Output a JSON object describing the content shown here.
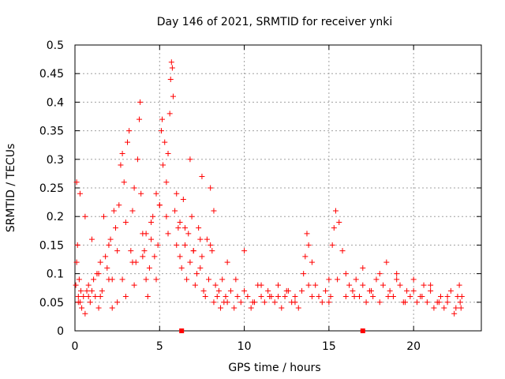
{
  "chart_data": {
    "type": "scatter",
    "title": "Day 146 of 2021, SRMTID for receiver ynki",
    "xlabel": "GPS time / hours",
    "ylabel": "SRMTID / TECUs",
    "xlim": [
      0,
      24
    ],
    "ylim": [
      0,
      0.5
    ],
    "x_ticks": [
      0,
      5,
      10,
      15,
      20
    ],
    "x_tick_labels": [
      "0",
      "5",
      "10",
      "15",
      "20"
    ],
    "y_ticks": [
      0,
      0.05,
      0.1,
      0.15,
      0.2,
      0.25,
      0.3,
      0.35,
      0.4,
      0.45,
      0.5
    ],
    "y_tick_labels": [
      "0",
      "0.05",
      "0.1",
      "0.15",
      "0.2",
      "0.25",
      "0.3",
      "0.35",
      "0.4",
      "0.45",
      "0.5"
    ],
    "grid": true,
    "marker": "plus",
    "color": "#ff0000",
    "baseline_markers_x": [
      6.3,
      17.0
    ],
    "series": [
      {
        "name": "SRMTID",
        "x": [
          0.05,
          0.1,
          0.15,
          0.2,
          0.25,
          0.3,
          0.35,
          0.4,
          0.5,
          0.6,
          0.7,
          0.8,
          0.9,
          1.0,
          1.1,
          1.2,
          1.3,
          1.4,
          1.5,
          1.6,
          1.7,
          1.8,
          1.9,
          2.0,
          2.1,
          2.2,
          2.3,
          2.4,
          2.5,
          2.6,
          2.7,
          2.8,
          2.9,
          3.0,
          3.1,
          3.2,
          3.3,
          3.4,
          3.5,
          3.6,
          3.7,
          3.8,
          3.85,
          3.9,
          4.0,
          4.1,
          4.2,
          4.3,
          4.4,
          4.5,
          4.6,
          4.7,
          4.8,
          4.9,
          5.0,
          5.1,
          5.15,
          5.2,
          5.3,
          5.4,
          5.5,
          5.6,
          5.65,
          5.7,
          5.75,
          5.8,
          5.9,
          6.0,
          6.1,
          6.2,
          6.3,
          6.4,
          6.5,
          6.6,
          6.7,
          6.8,
          6.9,
          7.0,
          7.1,
          7.2,
          7.3,
          7.4,
          7.5,
          7.6,
          7.7,
          7.8,
          7.9,
          8.0,
          8.1,
          8.2,
          8.3,
          8.4,
          8.5,
          8.6,
          8.7,
          8.8,
          8.9,
          9.0,
          9.2,
          9.4,
          9.6,
          9.8,
          10.0,
          10.2,
          10.4,
          10.6,
          10.8,
          11.0,
          11.2,
          11.4,
          11.6,
          11.8,
          12.0,
          12.2,
          12.4,
          12.6,
          12.8,
          13.0,
          13.2,
          13.4,
          13.5,
          13.6,
          13.7,
          13.8,
          14.0,
          14.2,
          14.4,
          14.6,
          14.8,
          15.0,
          15.1,
          15.2,
          15.3,
          15.4,
          15.6,
          15.8,
          16.0,
          16.2,
          16.4,
          16.6,
          16.8,
          17.0,
          17.2,
          17.4,
          17.6,
          17.8,
          18.0,
          18.2,
          18.4,
          18.6,
          18.8,
          19.0,
          19.2,
          19.4,
          19.6,
          19.8,
          20.0,
          20.2,
          20.4,
          20.6,
          20.8,
          21.0,
          21.2,
          21.4,
          21.6,
          21.8,
          22.0,
          22.2,
          22.4,
          22.6,
          22.7,
          22.75,
          22.8,
          22.85,
          0.1,
          0.3,
          0.6,
          1.0,
          1.5,
          2.0,
          2.5,
          3.0,
          3.5,
          4.0,
          4.5,
          5.0,
          5.5,
          6.0,
          6.5,
          7.0,
          7.5,
          8.0,
          9.0,
          10.0,
          11.0,
          12.0,
          13.0,
          14.0,
          15.0,
          16.0,
          17.0,
          18.0,
          19.0,
          20.0,
          21.0,
          22.0,
          0.2,
          0.8,
          1.4,
          2.2,
          2.8,
          3.4,
          4.2,
          4.8,
          5.4,
          6.2,
          6.8,
          7.4,
          8.2,
          9.5,
          10.5,
          11.5,
          12.5,
          13.8,
          15.5,
          16.5,
          17.5,
          18.5,
          19.5,
          20.5,
          21.5,
          22.5
        ],
        "y": [
          0.08,
          0.12,
          0.15,
          0.06,
          0.09,
          0.05,
          0.07,
          0.04,
          0.06,
          0.03,
          0.07,
          0.08,
          0.05,
          0.07,
          0.09,
          0.06,
          0.1,
          0.04,
          0.12,
          0.07,
          0.2,
          0.13,
          0.11,
          0.15,
          0.16,
          0.09,
          0.21,
          0.18,
          0.14,
          0.22,
          0.29,
          0.31,
          0.26,
          0.19,
          0.33,
          0.35,
          0.14,
          0.21,
          0.25,
          0.12,
          0.3,
          0.37,
          0.4,
          0.24,
          0.17,
          0.14,
          0.09,
          0.06,
          0.11,
          0.16,
          0.2,
          0.13,
          0.09,
          0.15,
          0.22,
          0.35,
          0.37,
          0.29,
          0.33,
          0.26,
          0.31,
          0.38,
          0.44,
          0.47,
          0.46,
          0.41,
          0.21,
          0.24,
          0.18,
          0.19,
          0.11,
          0.23,
          0.15,
          0.09,
          0.17,
          0.12,
          0.2,
          0.14,
          0.08,
          0.1,
          0.18,
          0.11,
          0.13,
          0.07,
          0.06,
          0.16,
          0.09,
          0.25,
          0.14,
          0.05,
          0.08,
          0.06,
          0.07,
          0.04,
          0.09,
          0.05,
          0.06,
          0.05,
          0.07,
          0.04,
          0.06,
          0.05,
          0.07,
          0.06,
          0.04,
          0.05,
          0.08,
          0.06,
          0.05,
          0.07,
          0.06,
          0.05,
          0.08,
          0.04,
          0.06,
          0.07,
          0.05,
          0.06,
          0.04,
          0.07,
          0.1,
          0.13,
          0.17,
          0.15,
          0.12,
          0.08,
          0.06,
          0.05,
          0.07,
          0.09,
          0.06,
          0.15,
          0.18,
          0.21,
          0.19,
          0.14,
          0.1,
          0.08,
          0.07,
          0.09,
          0.06,
          0.08,
          0.05,
          0.07,
          0.06,
          0.09,
          0.05,
          0.08,
          0.12,
          0.07,
          0.06,
          0.1,
          0.08,
          0.05,
          0.07,
          0.06,
          0.09,
          0.05,
          0.06,
          0.08,
          0.05,
          0.07,
          0.04,
          0.05,
          0.06,
          0.04,
          0.05,
          0.07,
          0.03,
          0.06,
          0.08,
          0.05,
          0.04,
          0.06,
          0.26,
          0.24,
          0.2,
          0.16,
          0.06,
          0.09,
          0.05,
          0.06,
          0.08,
          0.13,
          0.19,
          0.22,
          0.17,
          0.15,
          0.18,
          0.14,
          0.27,
          0.15,
          0.12,
          0.14,
          0.08,
          0.06,
          0.05,
          0.06,
          0.05,
          0.06,
          0.11,
          0.1,
          0.09,
          0.07,
          0.08,
          0.06,
          0.05,
          0.06,
          0.1,
          0.04,
          0.09,
          0.12,
          0.17,
          0.24,
          0.2,
          0.13,
          0.3,
          0.16,
          0.21,
          0.09,
          0.05,
          0.06,
          0.07,
          0.08,
          0.09,
          0.06,
          0.07,
          0.06,
          0.05,
          0.06,
          0.05,
          0.04
        ]
      }
    ]
  }
}
